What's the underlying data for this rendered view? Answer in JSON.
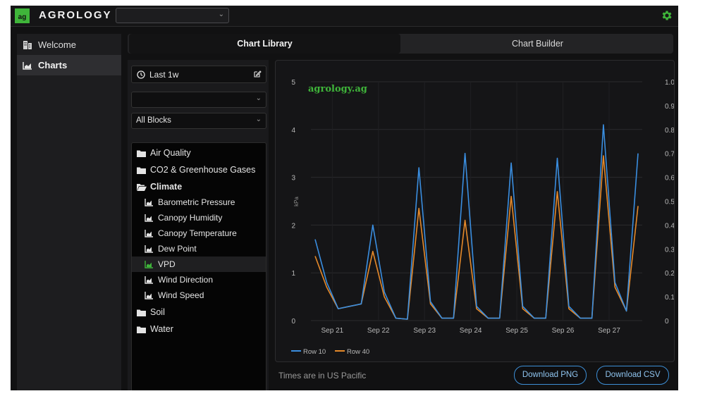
{
  "brand": {
    "logo_text": "ag",
    "name": "AGROLOGY"
  },
  "top_select": {
    "value": ""
  },
  "sidebar": {
    "items": [
      {
        "label": "Welcome"
      },
      {
        "label": "Charts"
      }
    ]
  },
  "tabs": [
    {
      "label": "Chart Library"
    },
    {
      "label": "Chart Builder"
    }
  ],
  "filters": {
    "time_range": "Last 1w",
    "farm_select": "",
    "block_select": "All Blocks"
  },
  "tree": {
    "categories": [
      {
        "label": "Air Quality"
      },
      {
        "label": "CO2 & Greenhouse Gases"
      },
      {
        "label": "Climate"
      },
      {
        "label": "Soil"
      },
      {
        "label": "Water"
      }
    ],
    "climate_children": [
      {
        "label": "Barometric Pressure"
      },
      {
        "label": "Canopy Humidity"
      },
      {
        "label": "Canopy Temperature"
      },
      {
        "label": "Dew Point"
      },
      {
        "label": "VPD"
      },
      {
        "label": "Wind Direction"
      },
      {
        "label": "Wind Speed"
      }
    ]
  },
  "chart": {
    "watermark": "agrology.ag",
    "timezone_note": "Times are in US Pacific"
  },
  "buttons": {
    "png": "Download PNG",
    "csv": "Download CSV"
  },
  "colors": {
    "accent_green": "#3fb53a",
    "row10": "#3a8ee0",
    "row40": "#e5892a",
    "button_blue": "#3d8fd6"
  },
  "chart_data": {
    "type": "line",
    "title": "",
    "watermark": "agrology.ag",
    "xlabel": "",
    "ylabel": "kPa",
    "x": [
      "Sep 20 18:00",
      "Sep 21 00:00",
      "Sep 21 06:00",
      "Sep 21 12:00",
      "Sep 21 18:00",
      "Sep 22 00:00",
      "Sep 22 06:00",
      "Sep 22 12:00",
      "Sep 22 18:00",
      "Sep 23 00:00",
      "Sep 23 06:00",
      "Sep 23 12:00",
      "Sep 23 18:00",
      "Sep 24 00:00",
      "Sep 24 06:00",
      "Sep 24 12:00",
      "Sep 24 18:00",
      "Sep 25 00:00",
      "Sep 25 06:00",
      "Sep 25 12:00",
      "Sep 25 18:00",
      "Sep 26 00:00",
      "Sep 26 06:00",
      "Sep 26 12:00",
      "Sep 26 18:00",
      "Sep 27 00:00",
      "Sep 27 06:00",
      "Sep 27 12:00",
      "Sep 27 18:00"
    ],
    "xticks": [
      "Sep 21",
      "Sep 22",
      "Sep 23",
      "Sep 24",
      "Sep 25",
      "Sep 26",
      "Sep 27"
    ],
    "ylim": [
      0,
      5
    ],
    "yticks": [
      "0",
      "1",
      "2",
      "3",
      "4",
      "5"
    ],
    "y2lim": [
      0,
      1.0
    ],
    "y2ticks": [
      "0",
      "0.1",
      "0.2",
      "0.3",
      "0.4",
      "0.5",
      "0.6",
      "0.7",
      "0.8",
      "0.9",
      "1.0"
    ],
    "series": [
      {
        "name": "Row 10",
        "values": [
          1.7,
          0.8,
          0.25,
          0.3,
          0.35,
          2.0,
          0.6,
          0.05,
          0.03,
          3.2,
          0.4,
          0.05,
          0.05,
          3.5,
          0.3,
          0.05,
          0.05,
          3.3,
          0.3,
          0.05,
          0.05,
          3.4,
          0.3,
          0.05,
          0.05,
          4.1,
          0.8,
          0.2,
          3.5
        ]
      },
      {
        "name": "Row 40",
        "values": [
          1.35,
          0.7,
          0.25,
          0.3,
          0.35,
          1.45,
          0.5,
          0.05,
          0.03,
          2.35,
          0.35,
          0.05,
          0.05,
          2.1,
          0.25,
          0.05,
          0.05,
          2.6,
          0.25,
          0.05,
          0.05,
          2.7,
          0.25,
          0.05,
          0.05,
          3.45,
          0.7,
          0.2,
          2.4
        ]
      }
    ],
    "legend": [
      "Row 10",
      "Row 40"
    ],
    "legend_position": "bottom-left"
  }
}
